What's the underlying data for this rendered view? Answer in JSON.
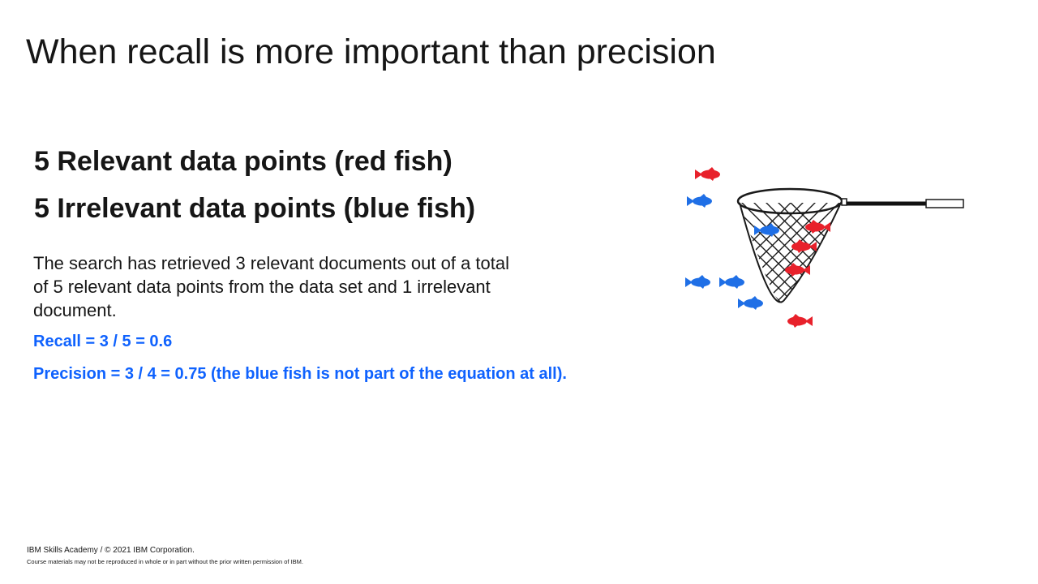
{
  "title": "When recall is more important than precision",
  "headings": {
    "relevant": "5 Relevant data points (red fish)",
    "irrelevant": "5 Irrelevant data points (blue fish)"
  },
  "body": "The search has retrieved 3 relevant documents out of a total of 5 relevant data points from the data set and 1 irrelevant document.",
  "metrics": {
    "recall": "Recall = 3 / 5 = 0.6",
    "precision": "Precision = 3 / 4 = 0.75 (the blue fish is not part of the equation at all)."
  },
  "footer": {
    "copyright": "IBM Skills Academy / © 2021 IBM Corporation.",
    "notice": "Course materials may not be reproduced in whole or in part without the prior written permission of IBM."
  },
  "colors": {
    "text": "#161616",
    "accent_blue": "#0f62fe",
    "red_fish": "#e8212b",
    "blue_fish": "#1f6fe6"
  },
  "illustration": {
    "icons": [
      "fishing-net-icon",
      "red-fish-icon",
      "blue-fish-icon"
    ],
    "red_fish_in_net": 3,
    "blue_fish_in_net": 1,
    "red_fish_outside": 2,
    "blue_fish_outside": 4
  }
}
